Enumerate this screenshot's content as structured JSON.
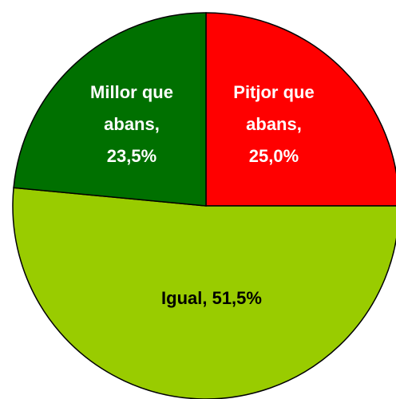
{
  "chart_data": {
    "type": "pie",
    "values": [
      25.0,
      51.5,
      23.5
    ],
    "value_labels": [
      [
        "Pitjor que",
        "abans,",
        "25,0%"
      ],
      [
        "Igual, 51,5%"
      ],
      [
        "Millor que",
        "abans,",
        "23,5%"
      ]
    ],
    "colors": [
      "#ff0000",
      "#99cc00",
      "#007000"
    ],
    "label_colors": [
      "#ffffff",
      "#000000",
      "#ffffff"
    ]
  }
}
